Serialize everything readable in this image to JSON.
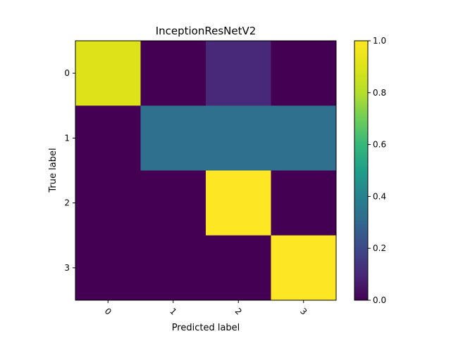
{
  "chart_data": {
    "type": "heatmap",
    "title": "InceptionResNetV2",
    "xlabel": "Predicted label",
    "ylabel": "True label",
    "x_categories": [
      "0",
      "1",
      "2",
      "3"
    ],
    "y_categories": [
      "0",
      "1",
      "2",
      "3"
    ],
    "values": [
      [
        0.9,
        0.0,
        0.1,
        0.0
      ],
      [
        0.0,
        0.33,
        0.33,
        0.33
      ],
      [
        0.0,
        0.0,
        1.0,
        0.0
      ],
      [
        0.0,
        0.0,
        0.0,
        1.0
      ]
    ],
    "colormap": "viridis",
    "colorbar": {
      "range": [
        0.0,
        1.0
      ],
      "ticks": [
        "0.0",
        "0.2",
        "0.4",
        "0.6",
        "0.8",
        "1.0"
      ]
    },
    "grid": false
  }
}
